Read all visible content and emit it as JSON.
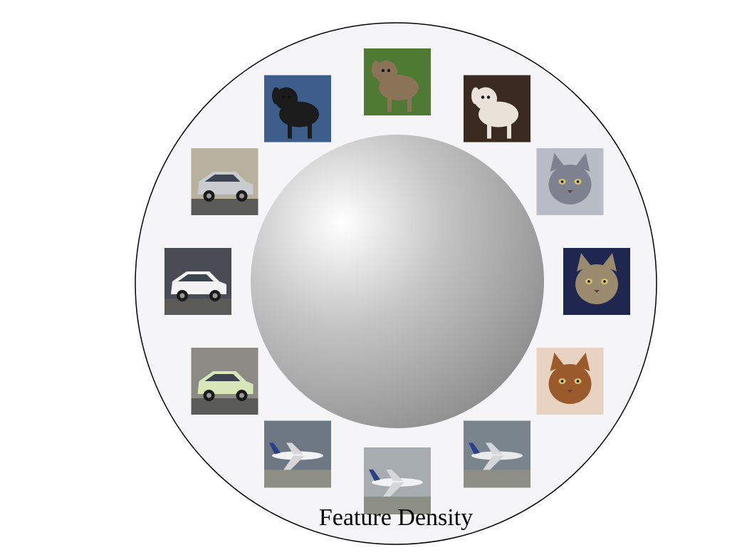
{
  "diagram": {
    "caption": "Feature Density",
    "colors": {
      "background": "#ffffff",
      "disk_fill": "#f5f4f7",
      "disk_stroke": "#000000",
      "sphere_highlight": "#ffffff",
      "sphere_mid": "#c4c4c4",
      "sphere_edge": "#8f8f8f"
    },
    "thumbnails": [
      {
        "id": "dog-terrier-grass",
        "kind": "dog",
        "bg": "#4f7a33",
        "accent": "#8b7358",
        "icon": "dog-icon"
      },
      {
        "id": "dog-jack-russell",
        "kind": "dog",
        "bg": "#3a2a22",
        "accent": "#e9e2d8",
        "icon": "dog-icon"
      },
      {
        "id": "cat-pallas",
        "kind": "cat",
        "bg": "#b8bcc6",
        "accent": "#7d828e",
        "icon": "cat-icon"
      },
      {
        "id": "cat-tabby-dark",
        "kind": "cat",
        "bg": "#1f2650",
        "accent": "#9a8a6e",
        "icon": "cat-icon"
      },
      {
        "id": "cat-orange",
        "kind": "cat",
        "bg": "#e8d3c2",
        "accent": "#9b5a2c",
        "icon": "cat-icon"
      },
      {
        "id": "plane-orange-jet",
        "kind": "plane",
        "bg": "#7a848c",
        "accent": "#e8eaec",
        "icon": "airplane-icon"
      },
      {
        "id": "plane-airliner",
        "kind": "plane",
        "bg": "#a7acb1",
        "accent": "#f1f2f4",
        "icon": "airplane-icon"
      },
      {
        "id": "plane-seaplane",
        "kind": "plane",
        "bg": "#6d7882",
        "accent": "#f2f3f5",
        "icon": "airplane-icon"
      },
      {
        "id": "car-smart",
        "kind": "car",
        "bg": "#8b8a84",
        "accent": "#d9e6b8",
        "icon": "car-icon"
      },
      {
        "id": "car-bmw",
        "kind": "car",
        "bg": "#4a4c55",
        "accent": "#f2f2f2",
        "icon": "car-icon"
      },
      {
        "id": "car-cobra",
        "kind": "car",
        "bg": "#b7b19e",
        "accent": "#c8ccd1",
        "icon": "car-icon"
      },
      {
        "id": "dog-black-chihuahua",
        "kind": "dog",
        "bg": "#3d5d8a",
        "accent": "#1b1b1b",
        "icon": "dog-icon"
      }
    ]
  }
}
